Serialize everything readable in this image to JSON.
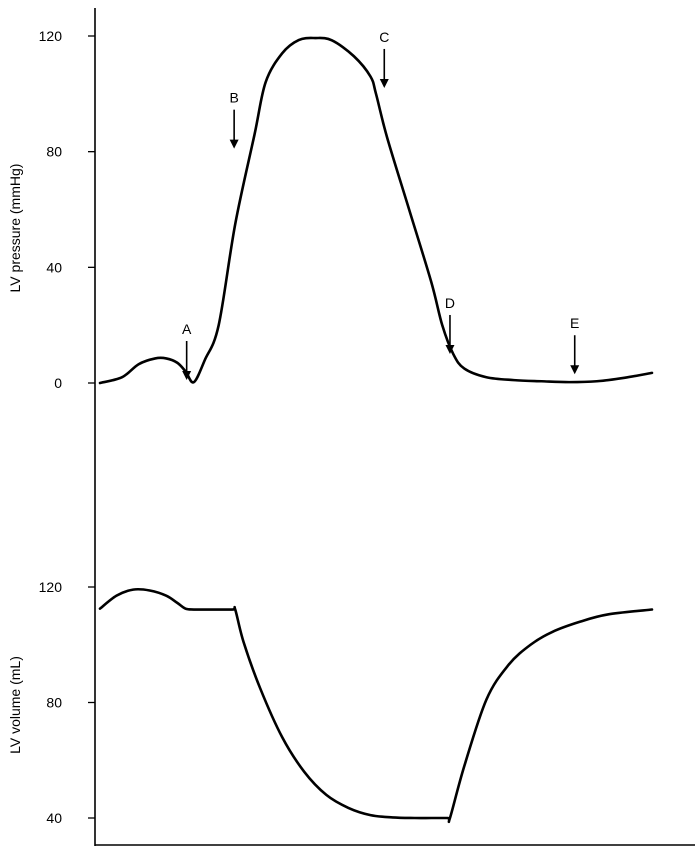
{
  "chart_data": [
    {
      "type": "line",
      "title": "",
      "xlabel": "",
      "ylabel": "LV pressure (mmHg)",
      "ylim": [
        0,
        120
      ],
      "yticks": [
        0,
        40,
        80,
        120
      ],
      "xlim": [
        0,
        1
      ],
      "grid": false,
      "series": [
        {
          "x": [
            0.0,
            0.04,
            0.07,
            0.1,
            0.12,
            0.14,
            0.155,
            0.17,
            0.19,
            0.215,
            0.245,
            0.28,
            0.3,
            0.33,
            0.36,
            0.39,
            0.42,
            0.46,
            0.49,
            0.5,
            0.52,
            0.56,
            0.6,
            0.62,
            0.64,
            0.66,
            0.7,
            0.75,
            0.8,
            0.85,
            0.9,
            0.95,
            1.0
          ],
          "values": [
            0,
            2,
            6.5,
            8.5,
            8.5,
            7,
            4,
            0.3,
            8,
            20,
            55,
            86,
            104,
            114,
            118.6,
            119.3,
            118.5,
            113,
            106,
            100,
            85,
            60,
            35,
            20,
            10,
            5,
            2,
            1,
            0.6,
            0.3,
            0.6,
            1.8,
            3.5
          ]
        }
      ],
      "annotations": [
        {
          "label": "A",
          "x": 0.157,
          "y": 0
        },
        {
          "label": "B",
          "x": 0.243,
          "y": 80
        },
        {
          "label": "C",
          "x": 0.515,
          "y": 101
        },
        {
          "label": "D",
          "x": 0.634,
          "y": 9
        },
        {
          "label": "E",
          "x": 0.86,
          "y": 2
        }
      ]
    },
    {
      "type": "line",
      "title": "",
      "xlabel": "",
      "ylabel": "LV volume (mL)",
      "ylim": [
        40,
        120
      ],
      "yticks": [
        40,
        80,
        120
      ],
      "xlim": [
        0,
        1
      ],
      "grid": false,
      "series": [
        {
          "x": [
            0.0,
            0.03,
            0.06,
            0.09,
            0.12,
            0.14,
            0.155,
            0.17,
            0.2,
            0.24,
            0.245,
            0.26,
            0.29,
            0.33,
            0.37,
            0.41,
            0.45,
            0.49,
            0.53,
            0.57,
            0.6,
            0.63,
            0.634,
            0.66,
            0.7,
            0.74,
            0.78,
            0.82,
            0.87,
            0.92,
            1.0
          ],
          "values": [
            112.5,
            117,
            119.1,
            118.8,
            117,
            114.5,
            112.5,
            112.2,
            112.2,
            112.2,
            112.2,
            101,
            85,
            68,
            56,
            48,
            43.5,
            41,
            40.2,
            40,
            40,
            40,
            40,
            58,
            81,
            93,
            100,
            104.5,
            108,
            110.5,
            112.2
          ]
        }
      ]
    }
  ],
  "markers": {
    "a": "A",
    "b": "B",
    "c": "C",
    "d": "D",
    "e": "E"
  },
  "axes": {
    "pressure_label": "LV  pressure (mmHg)",
    "volume_label": "LV volume (mL)"
  }
}
